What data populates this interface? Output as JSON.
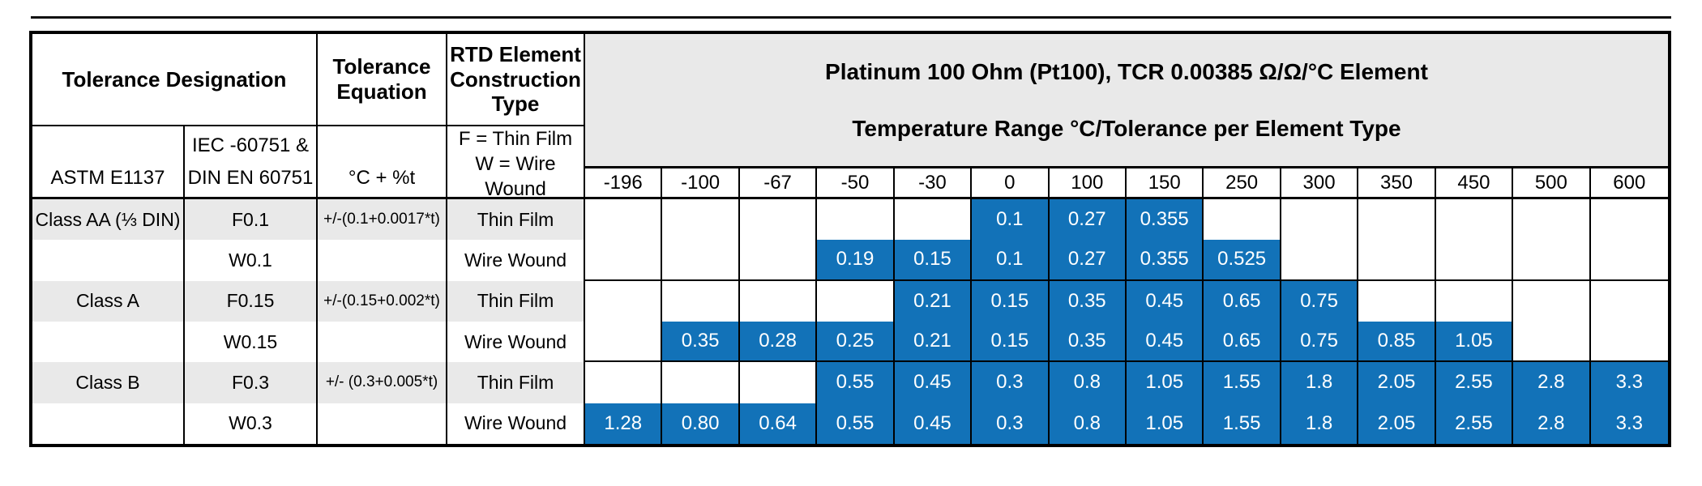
{
  "header": {
    "tolerance_designation": "Tolerance Designation",
    "tolerance_equation": "Tolerance Equation",
    "construction_type": "RTD Element Construction Type",
    "astm": "ASTM E1137",
    "iec_line1": "IEC -60751 &",
    "iec_line2": "DIN EN 60751",
    "equation_units": "°C + %t",
    "film_key": "F = Thin Film",
    "wire_key": "W = Wire Wound"
  },
  "chart_data": {
    "type": "table",
    "title": "Platinum 100 Ohm (Pt100), TCR 0.00385 Ω/Ω/°C Element",
    "subtitle": "Temperature Range °C/Tolerance per Element Type",
    "temperature_columns_c": [
      "-196",
      "-100",
      "-67",
      "-50",
      "-30",
      "0",
      "100",
      "150",
      "250",
      "300",
      "350",
      "450",
      "500",
      "600"
    ],
    "rows": [
      {
        "class_label": "Class AA (⅓ DIN)",
        "designation": "F0.1",
        "equation": "+/-(0.1+0.0017*t)",
        "construction": "Thin Film",
        "shaded": true,
        "values": [
          "",
          "",
          "",
          "",
          "",
          "0.1",
          "0.27",
          "0.355",
          "",
          "",
          "",
          "",
          "",
          ""
        ]
      },
      {
        "class_label": "",
        "designation": "W0.1",
        "equation": "",
        "construction": "Wire Wound",
        "shaded": false,
        "values": [
          "",
          "",
          "",
          "0.19",
          "0.15",
          "0.1",
          "0.27",
          "0.355",
          "0.525",
          "",
          "",
          "",
          "",
          ""
        ]
      },
      {
        "class_label": "Class A",
        "designation": "F0.15",
        "equation": "+/-(0.15+0.002*t)",
        "construction": "Thin Film",
        "shaded": true,
        "values": [
          "",
          "",
          "",
          "",
          "0.21",
          "0.15",
          "0.35",
          "0.45",
          "0.65",
          "0.75",
          "",
          "",
          "",
          ""
        ]
      },
      {
        "class_label": "",
        "designation": "W0.15",
        "equation": "",
        "construction": "Wire Wound",
        "shaded": false,
        "values": [
          "",
          "0.35",
          "0.28",
          "0.25",
          "0.21",
          "0.15",
          "0.35",
          "0.45",
          "0.65",
          "0.75",
          "0.85",
          "1.05",
          "",
          ""
        ]
      },
      {
        "class_label": "Class B",
        "designation": "F0.3",
        "equation": "+/- (0.3+0.005*t)",
        "construction": "Thin Film",
        "shaded": true,
        "values": [
          "",
          "",
          "",
          "0.55",
          "0.45",
          "0.3",
          "0.8",
          "1.05",
          "1.55",
          "1.8",
          "2.05",
          "2.55",
          "2.8",
          "3.3"
        ]
      },
      {
        "class_label": "",
        "designation": "W0.3",
        "equation": "",
        "construction": "Wire Wound",
        "shaded": false,
        "values": [
          "1.28",
          "0.80",
          "0.64",
          "0.55",
          "0.45",
          "0.3",
          "0.8",
          "1.05",
          "1.55",
          "1.8",
          "2.05",
          "2.55",
          "2.8",
          "3.3"
        ]
      }
    ]
  },
  "colors": {
    "fill_blue": "#1272B8",
    "band_gray": "#E9E9E9",
    "border": "#000000"
  }
}
